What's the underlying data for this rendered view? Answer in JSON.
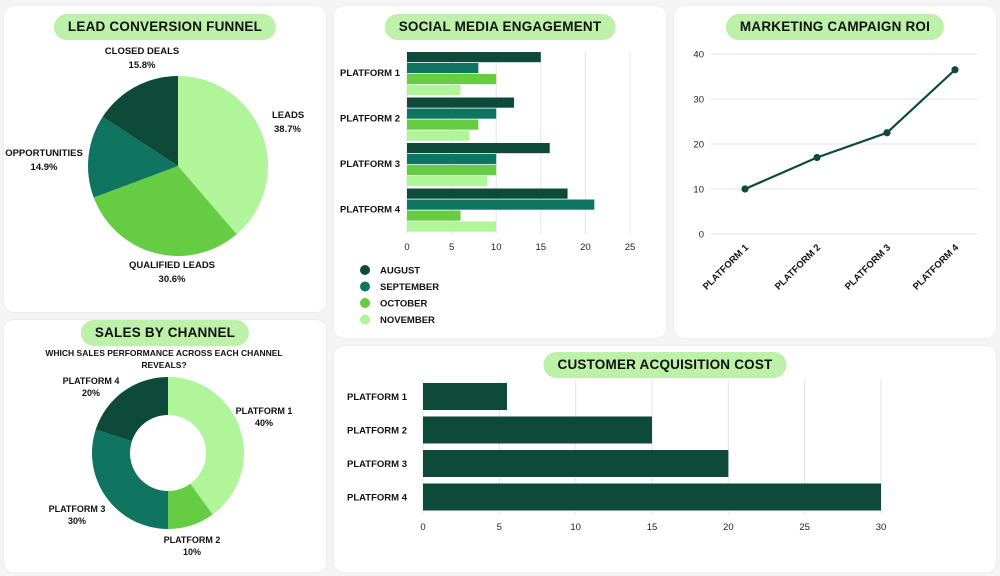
{
  "colors": {
    "august": "#0d4a3a",
    "september": "#0f7560",
    "october": "#66cc44",
    "november": "#b0f59a",
    "pill": "#bdf0a8"
  },
  "chart_data": [
    {
      "id": "lead-funnel",
      "type": "pie",
      "title": "LEAD CONVERSION FUNNEL",
      "slices": [
        {
          "label": "LEADS",
          "value": 38.7,
          "display": "38.7%",
          "color": "#b0f59a"
        },
        {
          "label": "QUALIFIED LEADS",
          "value": 30.6,
          "display": "30.6%",
          "color": "#66cc44"
        },
        {
          "label": "OPPORTUNITIES",
          "value": 14.9,
          "display": "14.9%",
          "color": "#0f7560"
        },
        {
          "label": "CLOSED DEALS",
          "value": 15.8,
          "display": "15.8%",
          "color": "#0d4a3a"
        }
      ]
    },
    {
      "id": "social-engagement",
      "type": "bar",
      "orientation": "horizontal",
      "title": "SOCIAL MEDIA ENGAGEMENT",
      "categories": [
        "PLATFORM 1",
        "PLATFORM 2",
        "PLATFORM 3",
        "PLATFORM 4"
      ],
      "series": [
        {
          "name": "AUGUST",
          "color": "#0d4a3a",
          "values": [
            15,
            12,
            16,
            18
          ]
        },
        {
          "name": "SEPTEMBER",
          "color": "#0f7560",
          "values": [
            8,
            10,
            10,
            21
          ]
        },
        {
          "name": "OCTOBER",
          "color": "#66cc44",
          "values": [
            10,
            8,
            10,
            6
          ]
        },
        {
          "name": "NOVEMBER",
          "color": "#b0f59a",
          "values": [
            6,
            7,
            9,
            10
          ]
        }
      ],
      "xlim": [
        0,
        25
      ],
      "xticks": [
        0,
        5,
        10,
        15,
        20,
        25
      ],
      "legend": "bottom-left",
      "grid": true
    },
    {
      "id": "campaign-roi",
      "type": "line",
      "title": "MARKETING CAMPAIGN ROI",
      "categories": [
        "PLATFORM 1",
        "PLATFORM 2",
        "PLATFORM 3",
        "PLATFORM 4"
      ],
      "values": [
        10,
        17,
        22.5,
        36.5
      ],
      "ylim": [
        0,
        40
      ],
      "yticks": [
        0,
        10,
        20,
        30,
        40
      ],
      "color": "#0d4a3a",
      "grid": true
    },
    {
      "id": "sales-channel",
      "type": "pie",
      "variant": "donut",
      "title": "SALES BY CHANNEL",
      "subtitle": "WHICH SALES PERFORMANCE ACROSS EACH CHANNEL REVEALS?",
      "slices": [
        {
          "label": "PLATFORM 1",
          "value": 40,
          "display": "40%",
          "color": "#b0f59a"
        },
        {
          "label": "PLATFORM 2",
          "value": 10,
          "display": "10%",
          "color": "#66cc44"
        },
        {
          "label": "PLATFORM 3",
          "value": 30,
          "display": "30%",
          "color": "#0f7560"
        },
        {
          "label": "PLATFORM 4",
          "value": 20,
          "display": "20%",
          "color": "#0d4a3a"
        }
      ]
    },
    {
      "id": "acquisition-cost",
      "type": "bar",
      "orientation": "horizontal",
      "title": "CUSTOMER ACQUISITION COST",
      "categories": [
        "PLATFORM 1",
        "PLATFORM 2",
        "PLATFORM 3",
        "PLATFORM 4"
      ],
      "values": [
        5.5,
        15,
        20,
        30
      ],
      "xlim": [
        0,
        30
      ],
      "xticks": [
        0,
        5,
        10,
        15,
        20,
        25,
        30
      ],
      "color": "#0d4a3a",
      "grid": true
    }
  ]
}
